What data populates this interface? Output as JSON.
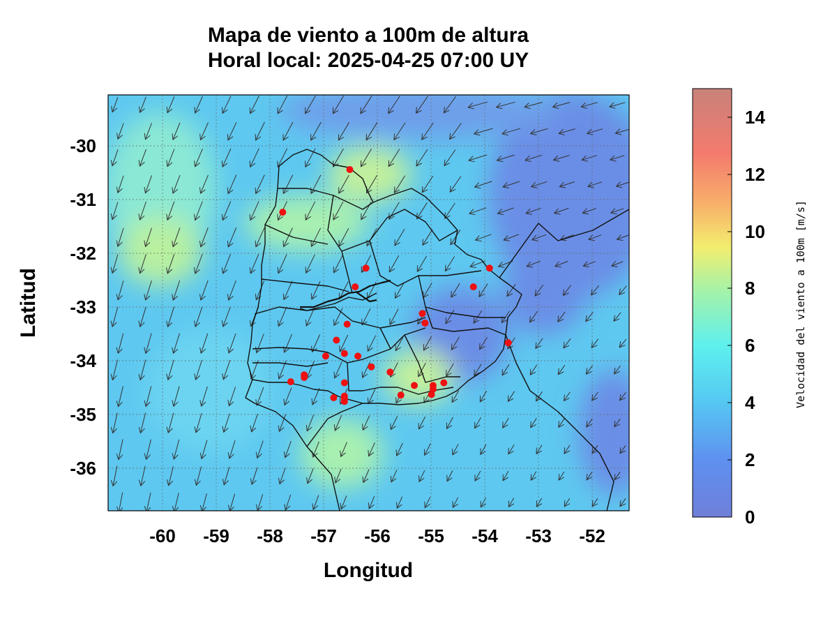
{
  "title": {
    "line1": "Mapa de viento a 100m de altura",
    "line2": "Horal local: 2025-04-25 07:00 UY"
  },
  "axes": {
    "xlabel": "Longitud",
    "ylabel": "Latitud",
    "x_range": [
      -61.0,
      -51.3
    ],
    "y_range": [
      -36.8,
      -29.0
    ],
    "x_ticks": [
      "-60",
      "-59",
      "-58",
      "-57",
      "-56",
      "-55",
      "-54",
      "-53",
      "-52"
    ],
    "y_ticks": [
      "-30",
      "-31",
      "-32",
      "-33",
      "-34",
      "-35",
      "-36"
    ],
    "grid": true
  },
  "colorbar": {
    "title": "Velocidad del viento a 100m [m/s]",
    "range": [
      0,
      15
    ],
    "ticks": [
      "0",
      "2",
      "4",
      "6",
      "8",
      "10",
      "12",
      "14"
    ],
    "colors": [
      "#6f7fd8",
      "#5f8ff0",
      "#55c8f2",
      "#5ef0ee",
      "#a6f2a8",
      "#f2ee6e",
      "#f8b06a",
      "#f47a6e",
      "#c8827a"
    ]
  },
  "chart_data": {
    "type": "map",
    "title": "Mapa de viento a 100m de altura",
    "subtitle": "Horal local: 2025-04-25 07:00 UY",
    "xlabel": "Longitud",
    "ylabel": "Latitud",
    "xlim": [
      -61.0,
      -51.3
    ],
    "ylim": [
      -36.8,
      -29.0
    ],
    "colorbar_label": "Velocidad del viento a 100m [m/s]",
    "colorbar_range": [
      0,
      15
    ],
    "wind_direction": "vectors point mostly toward the south-west",
    "stations": [
      {
        "lon": -56.5,
        "lat": -30.4
      },
      {
        "lon": -57.75,
        "lat": -31.2
      },
      {
        "lon": -56.2,
        "lat": -32.25
      },
      {
        "lon": -53.9,
        "lat": -32.25
      },
      {
        "lon": -56.4,
        "lat": -32.6
      },
      {
        "lon": -54.2,
        "lat": -32.6
      },
      {
        "lon": -55.15,
        "lat": -33.1
      },
      {
        "lon": -56.55,
        "lat": -33.3
      },
      {
        "lon": -55.1,
        "lat": -33.28
      },
      {
        "lon": -56.75,
        "lat": -33.6
      },
      {
        "lon": -53.55,
        "lat": -33.65
      },
      {
        "lon": -56.6,
        "lat": -33.85
      },
      {
        "lon": -56.95,
        "lat": -33.9
      },
      {
        "lon": -56.35,
        "lat": -33.9
      },
      {
        "lon": -56.1,
        "lat": -34.1
      },
      {
        "lon": -55.75,
        "lat": -34.2
      },
      {
        "lon": -57.35,
        "lat": -34.25
      },
      {
        "lon": -57.35,
        "lat": -34.3
      },
      {
        "lon": -57.6,
        "lat": -34.38
      },
      {
        "lon": -56.6,
        "lat": -34.4
      },
      {
        "lon": -54.75,
        "lat": -34.4
      },
      {
        "lon": -55.3,
        "lat": -34.45
      },
      {
        "lon": -54.95,
        "lat": -34.45
      },
      {
        "lon": -54.95,
        "lat": -34.52
      },
      {
        "lon": -54.98,
        "lat": -34.62
      },
      {
        "lon": -55.55,
        "lat": -34.63
      },
      {
        "lon": -56.8,
        "lat": -34.68
      },
      {
        "lon": -56.6,
        "lat": -34.65
      },
      {
        "lon": -56.6,
        "lat": -34.7
      },
      {
        "lon": -56.6,
        "lat": -34.75
      }
    ]
  }
}
